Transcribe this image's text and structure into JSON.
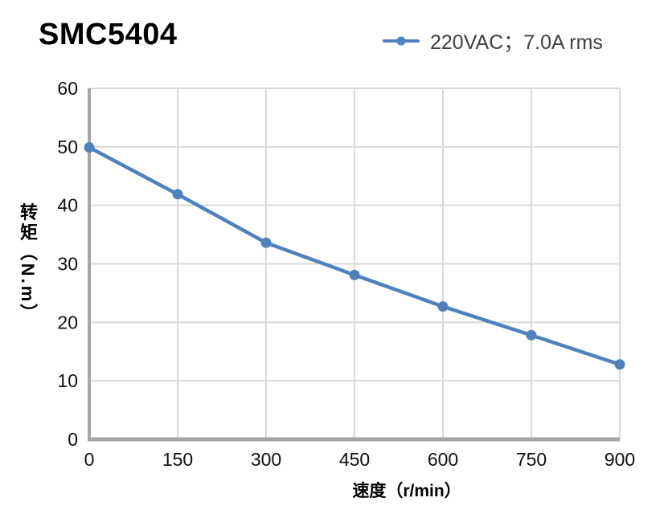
{
  "page": {
    "background": "#ffffff"
  },
  "legend": {
    "label": "220VAC；7.0A rms"
  },
  "chart_data": {
    "type": "line",
    "title": "SMC5404",
    "xlabel": "速度（r/min）",
    "ylabel": "转矩（N.m）",
    "xlim": [
      0,
      900
    ],
    "ylim": [
      0,
      60
    ],
    "xticks": [
      0,
      150,
      300,
      450,
      600,
      750,
      900
    ],
    "yticks": [
      0,
      10,
      20,
      30,
      40,
      50,
      60
    ],
    "grid": true,
    "legend_position": "top-right",
    "series": [
      {
        "name": "220VAC；7.0A rms",
        "x": [
          0,
          150,
          300,
          450,
          600,
          750,
          900
        ],
        "y": [
          49.9,
          41.9,
          33.6,
          28.1,
          22.7,
          17.8,
          12.8
        ],
        "color": "#4F81BD",
        "marker": "circle"
      }
    ],
    "colors": {
      "grid": "#d9d9d9",
      "axis": "#a6a6a6",
      "tick_text": "#111111",
      "label_text": "#000000",
      "legend_text": "#3f3f3f"
    }
  }
}
